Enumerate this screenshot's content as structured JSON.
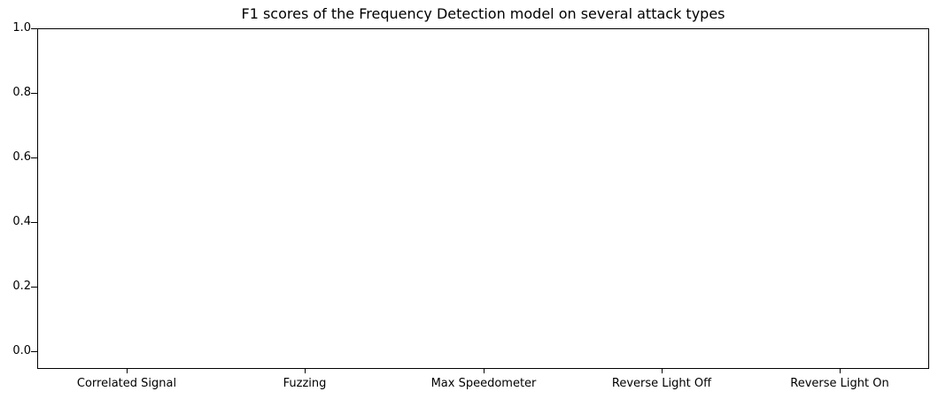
{
  "chart_data": {
    "type": "bar",
    "title": "F1 scores of the Frequency Detection model on several attack types",
    "categories": [
      "Correlated Signal",
      "Fuzzing",
      "Max Speedometer",
      "Reverse Light Off",
      "Reverse Light On"
    ],
    "values": [
      null,
      null,
      null,
      null,
      null
    ],
    "xlabel": "",
    "ylabel": "",
    "ylim": [
      -0.055,
      1.0
    ],
    "yticks": [
      "0.0",
      "0.2",
      "0.4",
      "0.6",
      "0.8",
      "1.0"
    ],
    "grid": false,
    "legend": null
  }
}
